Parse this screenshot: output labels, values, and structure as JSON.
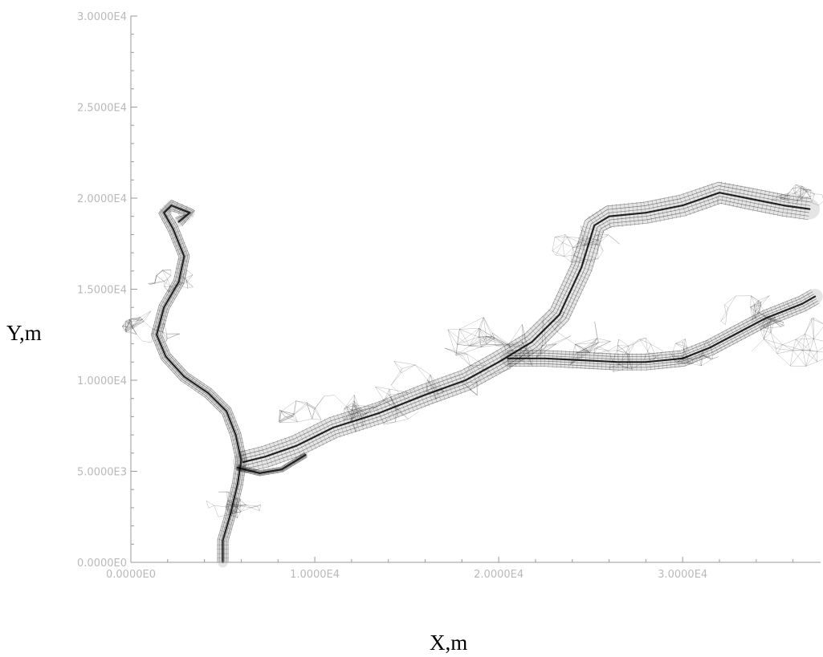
{
  "chart_data": {
    "type": "line",
    "title": "",
    "xlabel": "X,m",
    "ylabel": "Y,m",
    "xlim": [
      0,
      37500
    ],
    "ylim": [
      0,
      30000
    ],
    "grid": false,
    "x_ticks": [
      {
        "value": 0,
        "label": "0.0000E0"
      },
      {
        "value": 10000,
        "label": "1.0000E4"
      },
      {
        "value": 20000,
        "label": "2.0000E4"
      },
      {
        "value": 30000,
        "label": "3.0000E4"
      }
    ],
    "y_ticks": [
      {
        "value": 0,
        "label": "0.0000E0"
      },
      {
        "value": 5000,
        "label": "5.0000E3"
      },
      {
        "value": 10000,
        "label": "1.0000E4"
      },
      {
        "value": 15000,
        "label": "1.5000E4"
      },
      {
        "value": 20000,
        "label": "2.0000E4"
      },
      {
        "value": 25000,
        "label": "2.5000E4"
      },
      {
        "value": 30000,
        "label": "3.0000E4"
      }
    ],
    "series": [
      {
        "id": "west-branch",
        "width": 4,
        "points": [
          [
            5000,
            0
          ],
          [
            5000,
            1200
          ],
          [
            5400,
            2600
          ],
          [
            5800,
            4300
          ],
          [
            6000,
            5600
          ],
          [
            5700,
            7000
          ],
          [
            5200,
            8300
          ],
          [
            4200,
            9300
          ],
          [
            2900,
            10200
          ],
          [
            1900,
            11300
          ],
          [
            1400,
            12500
          ],
          [
            1800,
            14000
          ],
          [
            2600,
            15400
          ],
          [
            2900,
            16800
          ],
          [
            2300,
            18300
          ],
          [
            1800,
            19200
          ],
          [
            2200,
            19600
          ],
          [
            3200,
            19200
          ],
          [
            2600,
            18700
          ]
        ]
      },
      {
        "id": "main-channel",
        "width": 8,
        "points": [
          [
            6100,
            5500
          ],
          [
            7300,
            5800
          ],
          [
            9000,
            6400
          ],
          [
            11000,
            7400
          ],
          [
            13500,
            8200
          ],
          [
            16000,
            9200
          ],
          [
            18200,
            10000
          ],
          [
            20000,
            11000
          ],
          [
            21800,
            12100
          ],
          [
            23300,
            13600
          ],
          [
            24500,
            16200
          ],
          [
            25200,
            18500
          ],
          [
            26000,
            19000
          ],
          [
            28000,
            19200
          ],
          [
            30000,
            19600
          ],
          [
            32000,
            20300
          ],
          [
            33500,
            20000
          ],
          [
            35500,
            19600
          ],
          [
            36900,
            19400
          ]
        ]
      },
      {
        "id": "east-branch",
        "width": 6,
        "points": [
          [
            20500,
            11200
          ],
          [
            22500,
            11200
          ],
          [
            24500,
            11100
          ],
          [
            26500,
            11000
          ],
          [
            28000,
            11000
          ],
          [
            30000,
            11200
          ],
          [
            31500,
            11800
          ],
          [
            33000,
            12600
          ],
          [
            34500,
            13400
          ],
          [
            36500,
            14200
          ],
          [
            37200,
            14600
          ]
        ]
      },
      {
        "id": "south-loop",
        "width": 2,
        "points": [
          [
            5800,
            5200
          ],
          [
            7000,
            4900
          ],
          [
            8200,
            5100
          ],
          [
            9500,
            5900
          ]
        ]
      }
    ],
    "mesh_density": [
      {
        "x": 1000,
        "y": 13000,
        "r": 1400
      },
      {
        "x": 2200,
        "y": 15500,
        "r": 1000
      },
      {
        "x": 5600,
        "y": 3200,
        "r": 1200
      },
      {
        "x": 10500,
        "y": 8000,
        "r": 1800
      },
      {
        "x": 13500,
        "y": 8700,
        "r": 1900
      },
      {
        "x": 17000,
        "y": 10200,
        "r": 2300
      },
      {
        "x": 20500,
        "y": 12000,
        "r": 2700
      },
      {
        "x": 23000,
        "y": 12300,
        "r": 2500
      },
      {
        "x": 24500,
        "y": 17500,
        "r": 1500
      },
      {
        "x": 27000,
        "y": 11400,
        "r": 1500
      },
      {
        "x": 30500,
        "y": 11500,
        "r": 1200
      },
      {
        "x": 34000,
        "y": 13700,
        "r": 1600
      },
      {
        "x": 36300,
        "y": 12200,
        "r": 2100
      },
      {
        "x": 36300,
        "y": 20000,
        "r": 1100
      }
    ]
  }
}
